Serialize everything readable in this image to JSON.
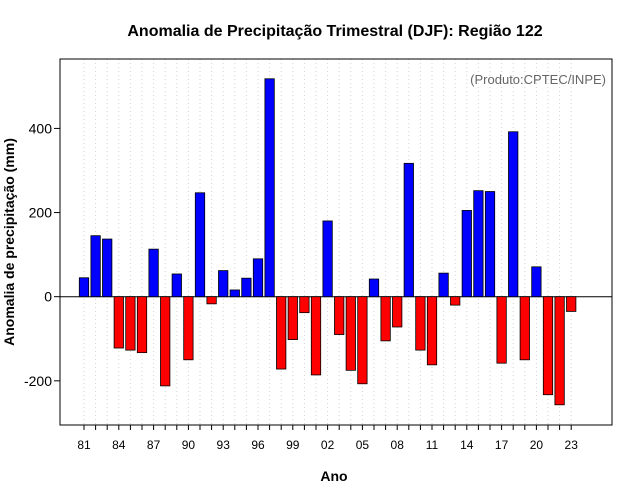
{
  "chart_data": {
    "type": "bar",
    "title": "Anomalia de Precipitação Trimestral (DJF): Região 122",
    "xlabel": "Ano",
    "ylabel": "Anomalia de precipitação (mm)",
    "annotation": "(Produto:CPTEC/INPE)",
    "ylim": [
      -305,
      565
    ],
    "yticks": [
      -200,
      0,
      200,
      400
    ],
    "xtick_labels": [
      "81",
      "84",
      "87",
      "90",
      "93",
      "96",
      "99",
      "02",
      "05",
      "08",
      "11",
      "14",
      "17",
      "20",
      "23"
    ],
    "categories": [
      "1981",
      "1982",
      "1983",
      "1984",
      "1985",
      "1986",
      "1987",
      "1988",
      "1989",
      "1990",
      "1991",
      "1992",
      "1993",
      "1994",
      "1995",
      "1996",
      "1997",
      "1998",
      "1999",
      "2000",
      "2001",
      "2002",
      "2003",
      "2004",
      "2005",
      "2006",
      "2007",
      "2008",
      "2009",
      "2010",
      "2011",
      "2012",
      "2013",
      "2014",
      "2015",
      "2016",
      "2017",
      "2018",
      "2019",
      "2020",
      "2021",
      "2022",
      "2023"
    ],
    "values": [
      45,
      145,
      137,
      -122,
      -127,
      -133,
      113,
      -212,
      54,
      -150,
      247,
      -17,
      62,
      16,
      44,
      90,
      518,
      -172,
      -102,
      -38,
      -186,
      180,
      -90,
      -175,
      -207,
      42,
      -105,
      -72,
      317,
      -127,
      -162,
      56,
      -20,
      205,
      252,
      250,
      -158,
      392,
      -150,
      71,
      -233,
      -257,
      -35
    ],
    "positive_color": "#0000ff",
    "negative_color": "#ff0000",
    "grid": "vertical dotted"
  }
}
